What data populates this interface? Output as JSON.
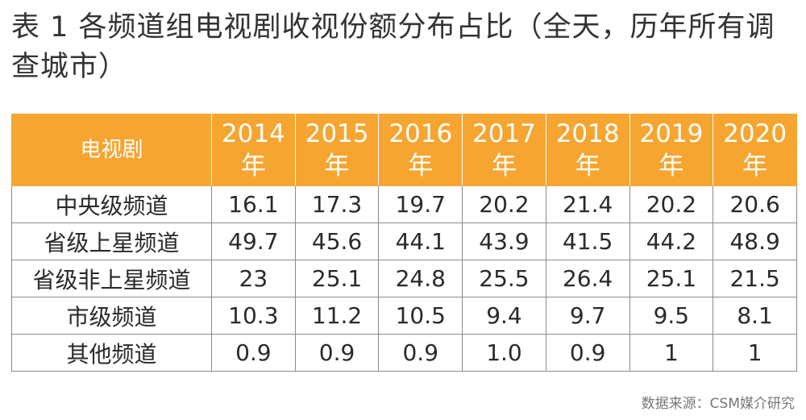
{
  "title": "表 1 各频道组电视剧收视份额分布占比（全天，历年所有调查城市）",
  "table": {
    "row_header": "电视剧",
    "year_suffix": "年",
    "years": [
      "2014",
      "2015",
      "2016",
      "2017",
      "2018",
      "2019",
      "2020"
    ],
    "rows": [
      {
        "label": "中央级频道",
        "values": [
          "16.1",
          "17.3",
          "19.7",
          "20.2",
          "21.4",
          "20.2",
          "20.6"
        ]
      },
      {
        "label": "省级上星频道",
        "values": [
          "49.7",
          "45.6",
          "44.1",
          "43.9",
          "41.5",
          "44.2",
          "48.9"
        ]
      },
      {
        "label": "省级非上星频道",
        "values": [
          "23",
          "25.1",
          "24.8",
          "25.5",
          "26.4",
          "25.1",
          "21.5"
        ]
      },
      {
        "label": "市级频道",
        "values": [
          "10.3",
          "11.2",
          "10.5",
          "9.4",
          "9.7",
          "9.5",
          "8.1"
        ]
      },
      {
        "label": "其他频道",
        "values": [
          "0.9",
          "0.9",
          "0.9",
          "1.0",
          "0.9",
          "1",
          "1"
        ]
      }
    ]
  },
  "source": "数据来源：CSM媒介研究",
  "colors": {
    "header_bg": "#f6a531",
    "header_text": "#ffffff",
    "grid": "#8a8a8a"
  }
}
